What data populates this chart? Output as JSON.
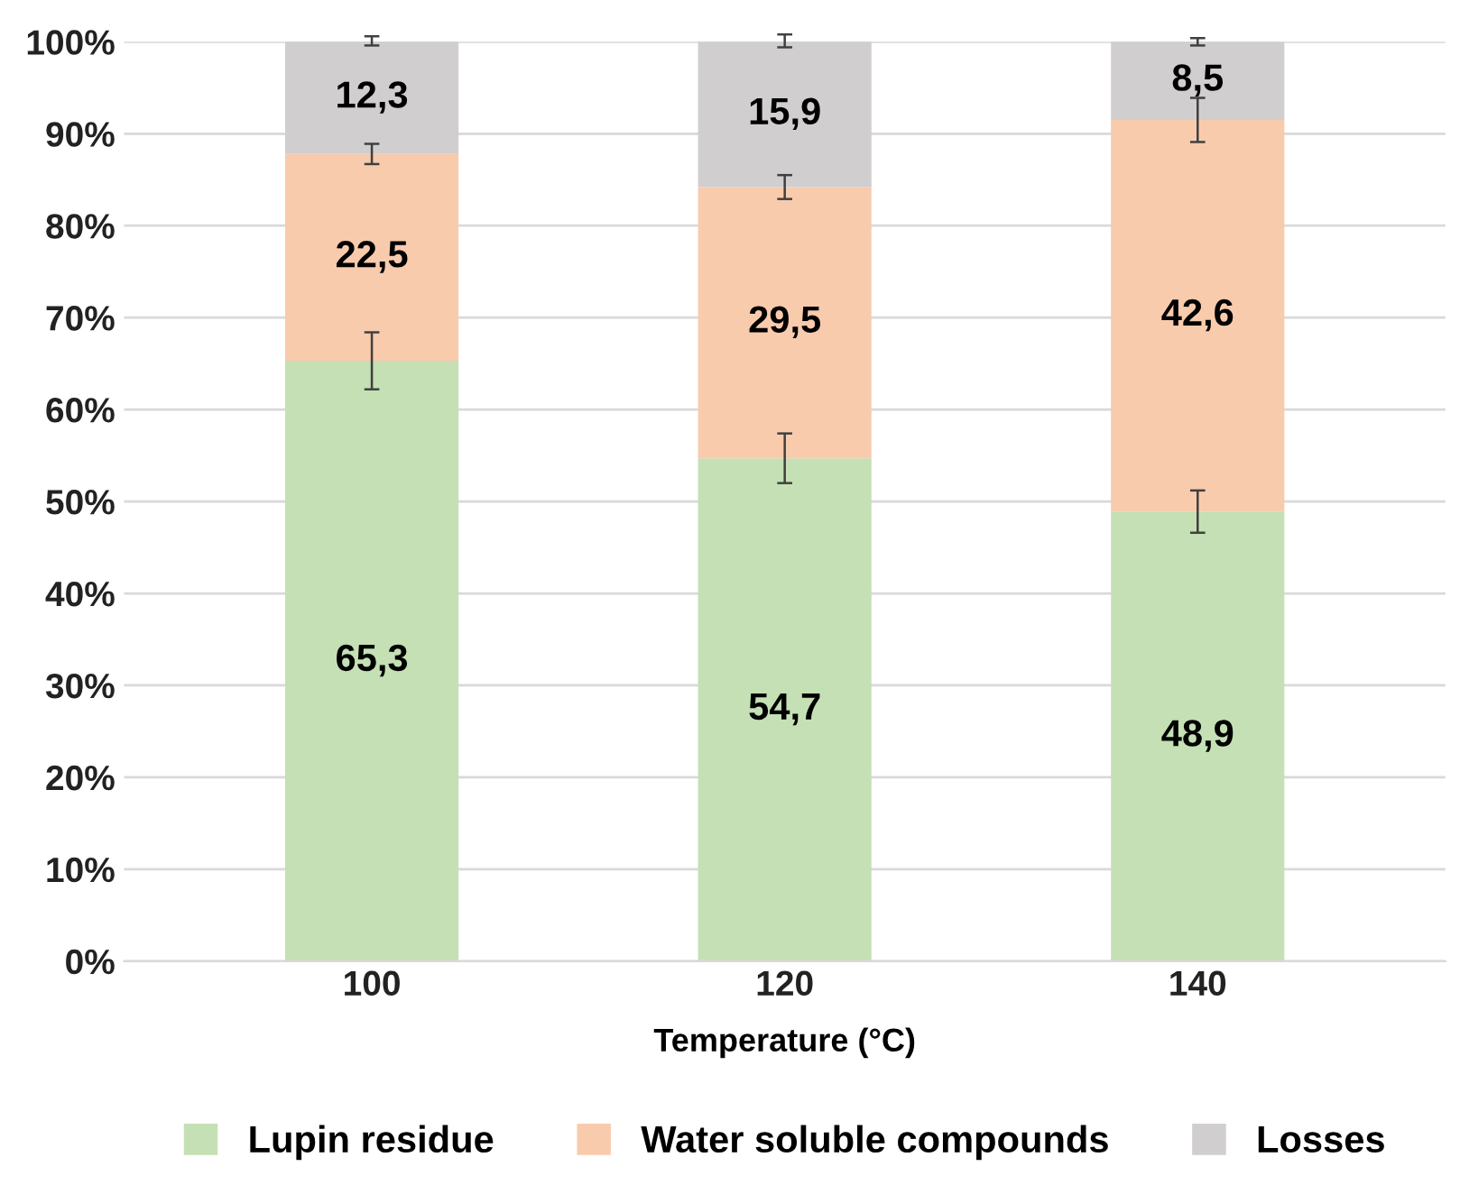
{
  "chart_data": {
    "type": "bar",
    "stacked": true,
    "xlabel": "Temperature (°C)",
    "categories": [
      "100",
      "120",
      "140"
    ],
    "series": [
      {
        "name": "Lupin residue",
        "color": "#c5e0b4",
        "values": [
          65.3,
          54.7,
          48.9
        ],
        "value_labels": [
          "65,3",
          "54,7",
          "48,9"
        ],
        "errors": [
          3.1,
          2.7,
          2.3
        ]
      },
      {
        "name": "Water soluble compounds",
        "color": "#f8cbad",
        "values": [
          22.5,
          29.5,
          42.6
        ],
        "value_labels": [
          "22,5",
          "29,5",
          "42,6"
        ],
        "errors": [
          1.1,
          1.3,
          2.4
        ]
      },
      {
        "name": "Losses",
        "color": "#d0cece",
        "values": [
          12.3,
          15.9,
          8.5
        ],
        "value_labels": [
          "12,3",
          "15,9",
          "8,5"
        ],
        "errors": [
          0.5,
          0.7,
          0.4
        ]
      }
    ],
    "ylim": [
      0,
      100
    ],
    "yticks": [
      {
        "value": 0,
        "label": "0%"
      },
      {
        "value": 10,
        "label": "10%"
      },
      {
        "value": 20,
        "label": "20%"
      },
      {
        "value": 30,
        "label": "30%"
      },
      {
        "value": 40,
        "label": "40%"
      },
      {
        "value": 50,
        "label": "50%"
      },
      {
        "value": 60,
        "label": "60%"
      },
      {
        "value": 70,
        "label": "70%"
      },
      {
        "value": 80,
        "label": "80%"
      },
      {
        "value": 90,
        "label": "90%"
      },
      {
        "value": 100,
        "label": "100%"
      }
    ],
    "grid": "y",
    "legend": "bottom"
  }
}
